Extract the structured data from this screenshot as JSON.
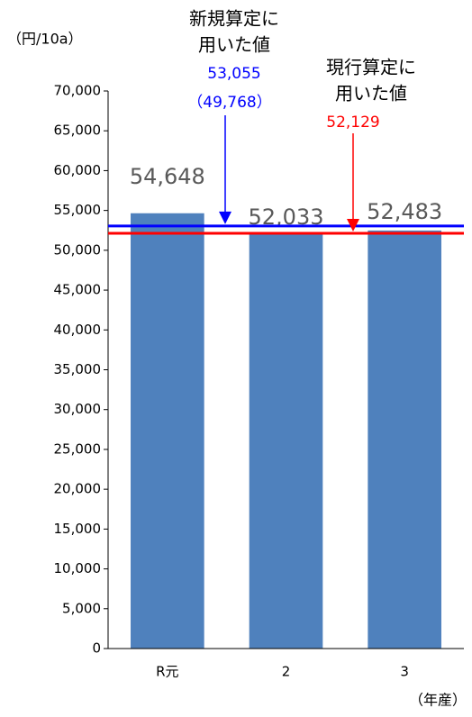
{
  "chart_data": {
    "type": "bar",
    "y_label": "（円/10a）",
    "x_label": "（年産）",
    "categories": [
      "R元",
      "2",
      "3"
    ],
    "values": [
      54648,
      52033,
      52483
    ],
    "value_labels": [
      "54,648",
      "52,033",
      "52,483"
    ],
    "color": "#4f81bd",
    "ylim": [
      0,
      70000
    ],
    "yticks": [
      {
        "value": 0,
        "label": "0"
      },
      {
        "value": 5000,
        "label": "5,000"
      },
      {
        "value": 10000,
        "label": "10,000"
      },
      {
        "value": 15000,
        "label": "15,000"
      },
      {
        "value": 20000,
        "label": "20,000"
      },
      {
        "value": 25000,
        "label": "25,000"
      },
      {
        "value": 30000,
        "label": "30,000"
      },
      {
        "value": 35000,
        "label": "35,000"
      },
      {
        "value": 40000,
        "label": "40,000"
      },
      {
        "value": 45000,
        "label": "45,000"
      },
      {
        "value": 50000,
        "label": "50,000"
      },
      {
        "value": 55000,
        "label": "55,000"
      },
      {
        "value": 60000,
        "label": "60,000"
      },
      {
        "value": 65000,
        "label": "65,000"
      },
      {
        "value": 70000,
        "label": "70,000"
      }
    ],
    "reference_lines": [
      {
        "value": 53055,
        "label": "53,055",
        "note": "（49,768）",
        "color": "#0000ff",
        "annotation": [
          "新規算定に",
          "用いた値"
        ]
      },
      {
        "value": 52129,
        "label": "52,129",
        "color": "#ff0000",
        "annotation": [
          "現行算定に",
          "用いた値"
        ]
      }
    ]
  }
}
